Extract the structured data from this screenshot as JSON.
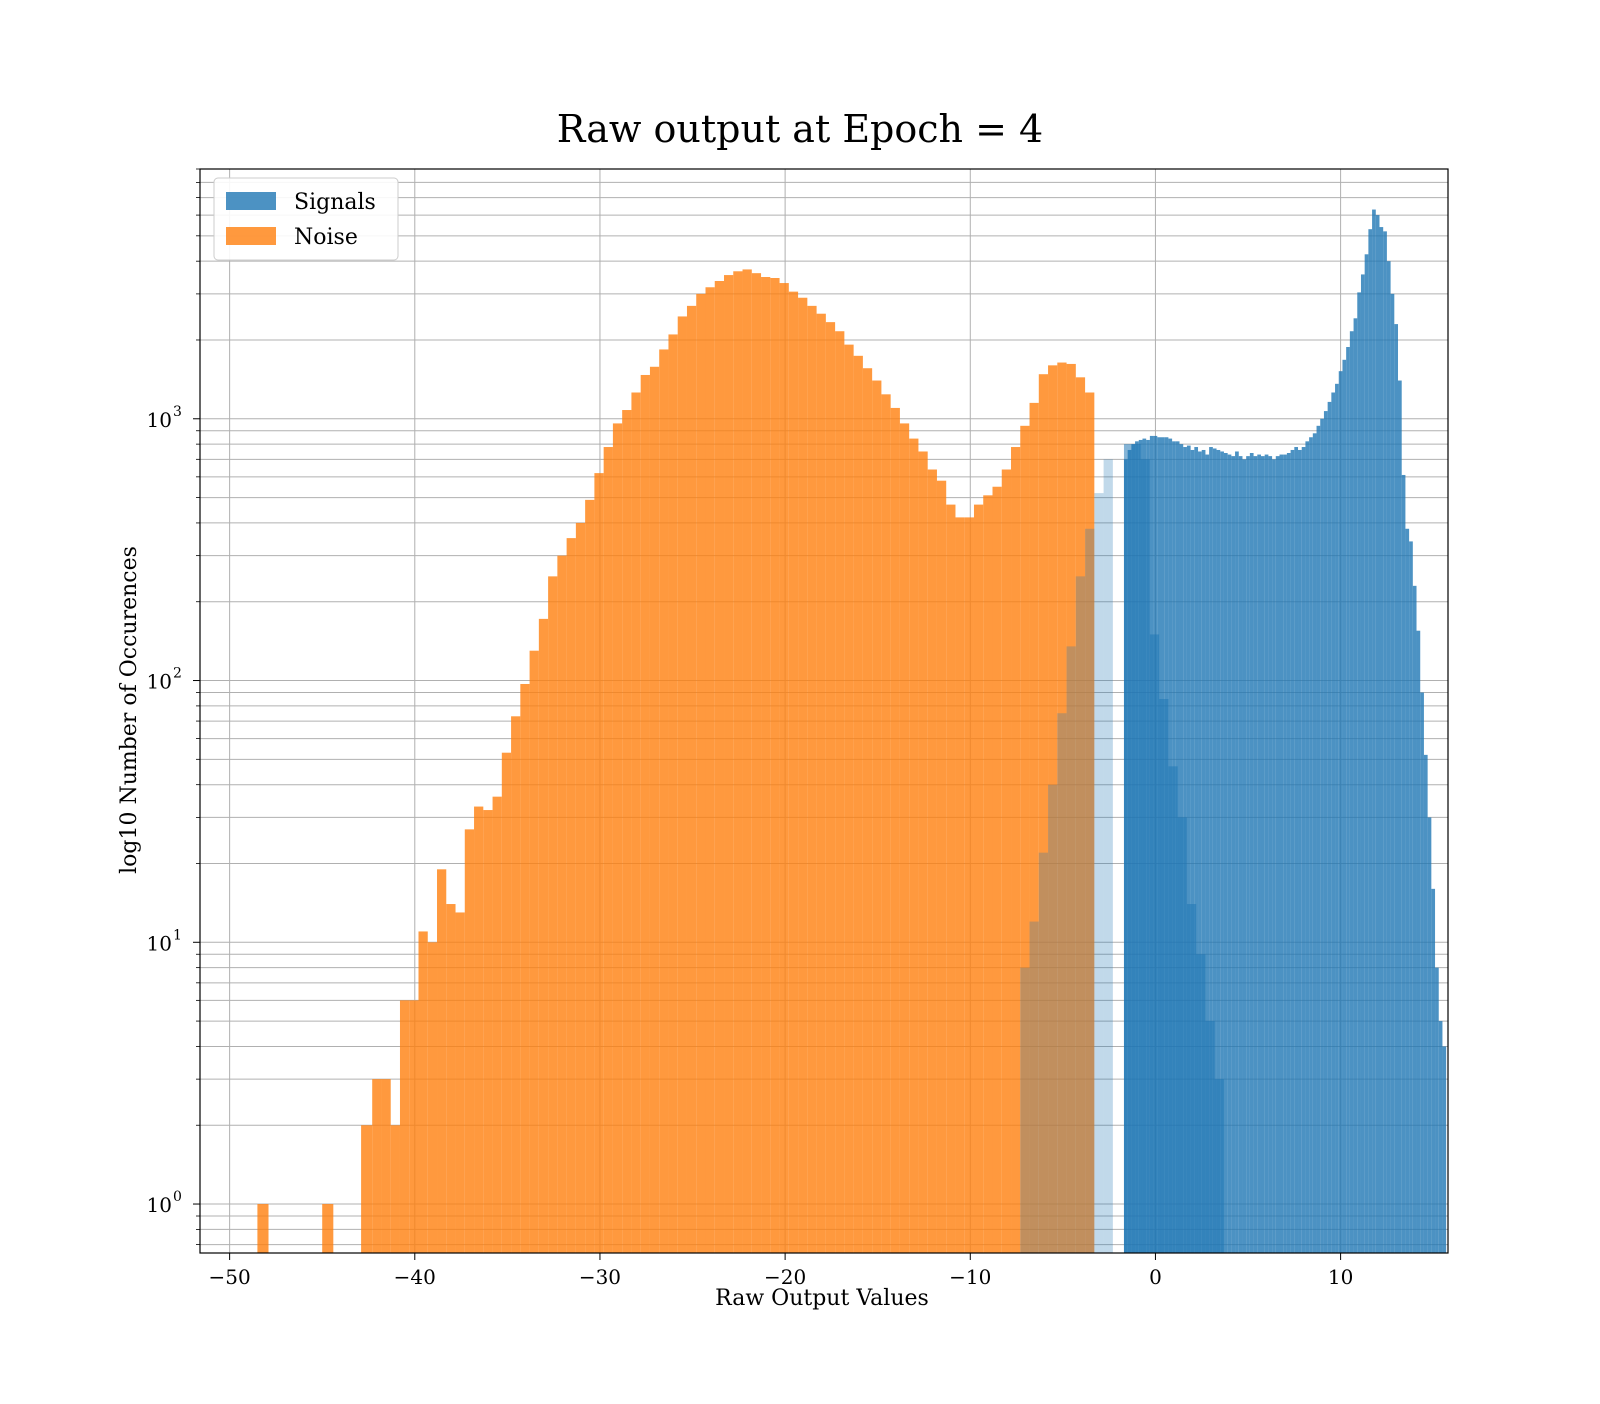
{
  "chart_data": {
    "type": "histogram",
    "title": "Raw output at Epoch = 4",
    "xlabel": "Raw Output Values",
    "ylabel": "log10 Number of Occurences",
    "xlim": [
      -51.6,
      15.8
    ],
    "ylim": [
      0.65,
      9000
    ],
    "yscale": "log",
    "grid": true,
    "xticks": [
      -50,
      -40,
      -30,
      -20,
      -10,
      0,
      10
    ],
    "xtick_labels": [
      "−50",
      "−40",
      "−30",
      "−20",
      "−10",
      "0",
      "10"
    ],
    "yticks": [
      {
        "value": 1,
        "label": "10",
        "exp": "0"
      },
      {
        "value": 10,
        "label": "10",
        "exp": "1"
      },
      {
        "value": 100,
        "label": "10",
        "exp": "2"
      },
      {
        "value": 1000,
        "label": "10",
        "exp": "3"
      }
    ],
    "legend": {
      "position": "upper-left",
      "entries": [
        "Signals",
        "Noise"
      ]
    },
    "series": [
      {
        "name": "Signals",
        "color": "#1f77b4",
        "alpha": 0.8,
        "bin_start": -1.7,
        "bin_width": 0.2,
        "values": [
          700,
          760,
          800,
          820,
          830,
          840,
          830,
          860,
          860,
          850,
          850,
          850,
          840,
          820,
          820,
          800,
          780,
          790,
          760,
          780,
          750,
          760,
          730,
          780,
          770,
          760,
          750,
          740,
          730,
          720,
          750,
          720,
          700,
          720,
          740,
          720,
          730,
          720,
          730,
          720,
          700,
          720,
          730,
          730,
          740,
          760,
          780,
          760,
          780,
          820,
          850,
          880,
          940,
          1000,
          1070,
          1160,
          1260,
          1360,
          1520,
          1680,
          1880,
          2160,
          2420,
          3040,
          3560,
          4250,
          5300,
          6300,
          6000,
          5400,
          5200,
          4000,
          3000,
          2300,
          1400,
          610,
          380,
          340,
          230,
          155,
          90,
          52,
          30,
          16,
          8,
          5,
          4
        ],
        "tail_edges": [
          -1.7,
          -0.8,
          -0.3,
          0.2,
          0.7,
          1.2,
          1.7,
          2.2,
          2.7,
          3.2,
          3.7
        ],
        "tail_values": [
          800,
          700,
          150,
          85,
          47,
          30,
          14,
          9,
          5,
          3,
          2
        ]
      },
      {
        "name": "Noise",
        "color": "#ff7f0e",
        "alpha": 0.8,
        "bin_edges": [
          -48.5,
          -47.9,
          -45.0,
          -44.4,
          -42.9,
          -42.3,
          -41.8,
          -41.3,
          -40.8,
          -40.3,
          -39.8,
          -39.3,
          -38.8,
          -38.3,
          -37.8,
          -37.3,
          -36.8,
          -36.3,
          -35.8,
          -35.3,
          -34.8,
          -34.3,
          -33.8,
          -33.3,
          -32.8,
          -32.3,
          -31.8,
          -31.3,
          -30.8,
          -30.3,
          -29.8,
          -29.3,
          -28.8,
          -28.3,
          -27.8,
          -27.3,
          -26.8,
          -26.3,
          -25.8,
          -25.3,
          -24.8,
          -24.3,
          -23.8,
          -23.3,
          -22.8,
          -22.3,
          -21.8,
          -21.3,
          -20.8,
          -20.3,
          -19.8,
          -19.3,
          -18.8,
          -18.3,
          -17.8,
          -17.3,
          -16.8,
          -16.3,
          -15.8,
          -15.3,
          -14.8,
          -14.3,
          -13.8,
          -13.3,
          -12.8,
          -12.3,
          -11.8,
          -11.3,
          -10.8,
          -10.3,
          -9.8,
          -9.3,
          -8.8,
          -8.3,
          -7.8,
          -7.3,
          -6.8,
          -6.3,
          -5.8,
          -5.3,
          -4.8,
          -4.3,
          -3.8,
          -3.3,
          -2.8,
          -2.3,
          -1.8
        ],
        "values": [
          1,
          0,
          1,
          0,
          2,
          3,
          3,
          2,
          6,
          6,
          11,
          10,
          19,
          14,
          13,
          27,
          33,
          32,
          36,
          53,
          73,
          97,
          130,
          172,
          250,
          300,
          350,
          400,
          490,
          620,
          780,
          960,
          1080,
          1260,
          1470,
          1580,
          1840,
          2100,
          2460,
          2700,
          3000,
          3180,
          3360,
          3540,
          3660,
          3720,
          3600,
          3480,
          3450,
          3300,
          3060,
          2900,
          2700,
          2520,
          2340,
          2160,
          1920,
          1740,
          1560,
          1400,
          1240,
          1100,
          960,
          840,
          750,
          640,
          580,
          470,
          420,
          420,
          470,
          510,
          550,
          640,
          780,
          940,
          1150,
          1480,
          1600,
          1640,
          1620,
          1440,
          1260,
          0,
          0,
          0
        ]
      }
    ]
  }
}
